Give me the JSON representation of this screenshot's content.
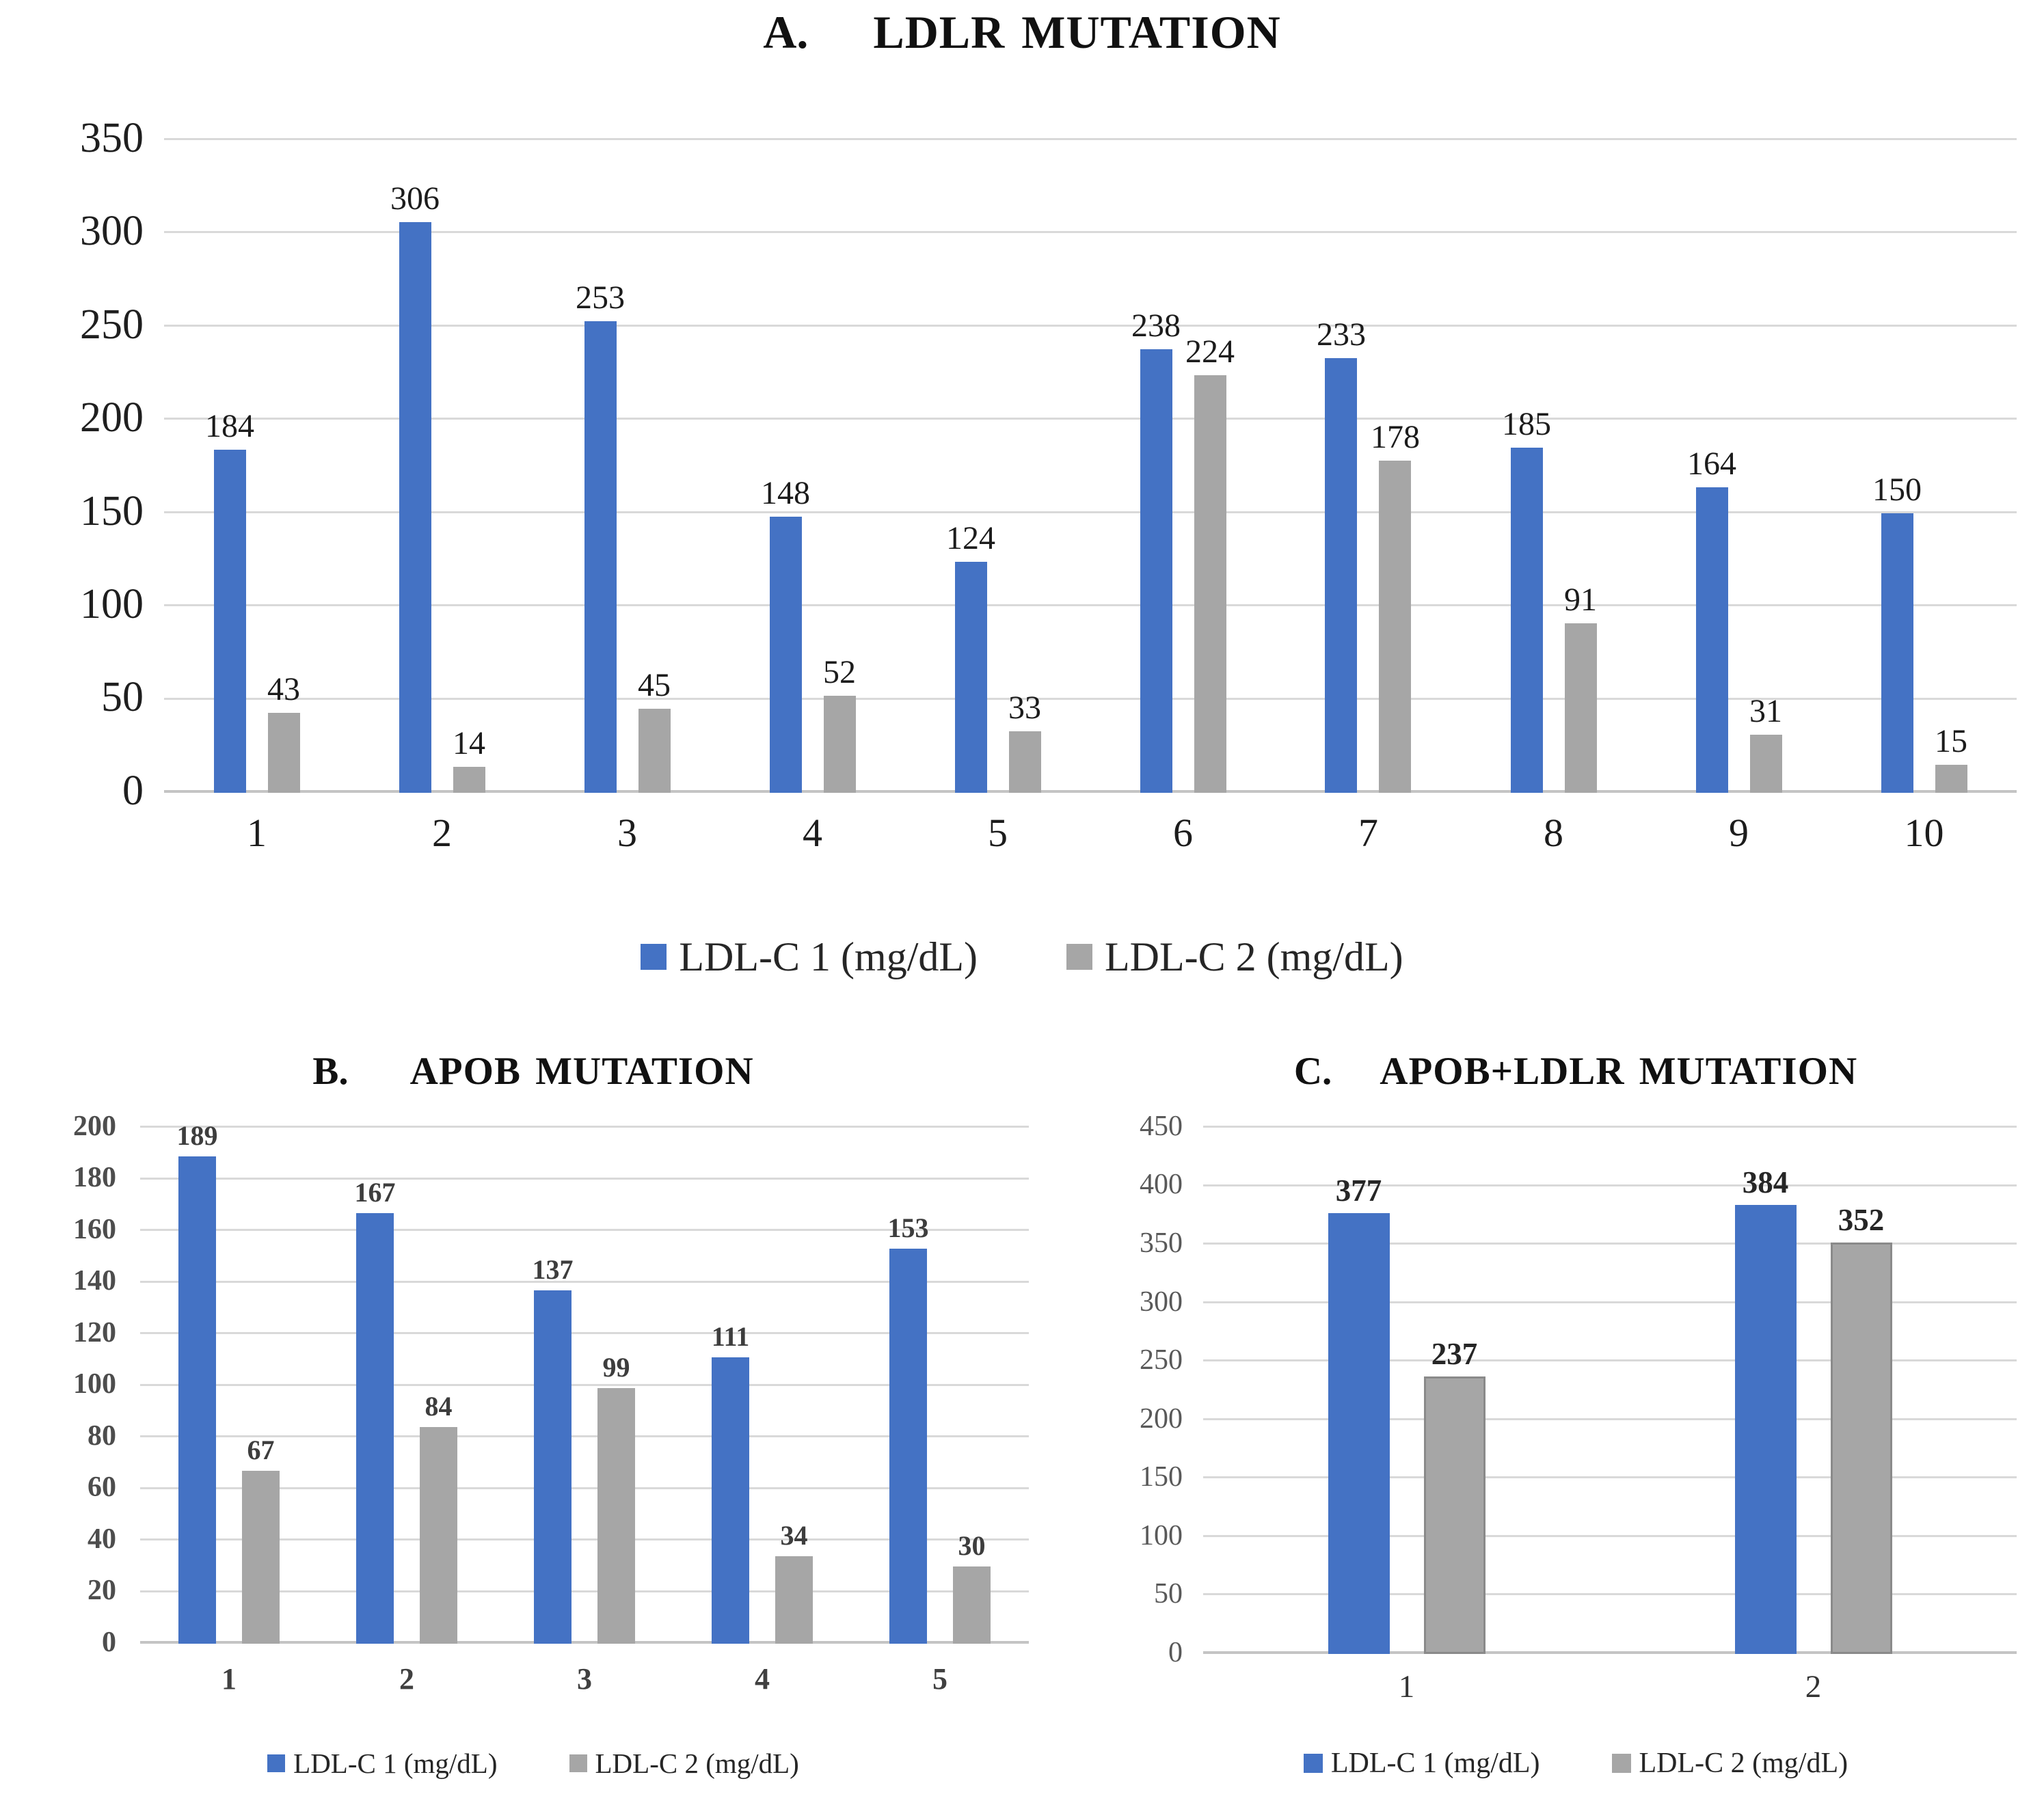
{
  "colors": {
    "series1_blue": "#4472c4",
    "series2_gray": "#a6a6a6",
    "gridline": "#d9d9d9"
  },
  "chart_data": [
    {
      "type": "bar",
      "panel_label": "A.",
      "title": "LDLR MUTATION",
      "categories": [
        "1",
        "2",
        "3",
        "4",
        "5",
        "6",
        "7",
        "8",
        "9",
        "10"
      ],
      "series": [
        {
          "name": "LDL-C 1 (mg/dL)",
          "color": "#4472c4",
          "values": [
            184,
            306,
            253,
            148,
            124,
            238,
            233,
            185,
            164,
            150
          ]
        },
        {
          "name": "LDL-C 2 (mg/dL)",
          "color": "#a6a6a6",
          "values": [
            43,
            14,
            45,
            52,
            33,
            224,
            178,
            91,
            31,
            15
          ]
        }
      ],
      "ylim": [
        0,
        350
      ],
      "ytick_step": 50,
      "grid": true,
      "legend_position": "bottom"
    },
    {
      "type": "bar",
      "panel_label": "B.",
      "title": "APOB MUTATION",
      "categories": [
        "1",
        "2",
        "3",
        "4",
        "5"
      ],
      "series": [
        {
          "name": "LDL-C 1 (mg/dL)",
          "color": "#4472c4",
          "values": [
            189,
            167,
            137,
            111,
            153
          ]
        },
        {
          "name": "LDL-C 2 (mg/dL)",
          "color": "#a6a6a6",
          "values": [
            67,
            84,
            99,
            34,
            30
          ]
        }
      ],
      "ylim": [
        0,
        200
      ],
      "ytick_step": 20,
      "grid": true,
      "legend_position": "bottom"
    },
    {
      "type": "bar",
      "panel_label": "C.",
      "title": "APOB+LDLR MUTATION",
      "categories": [
        "1",
        "2"
      ],
      "series": [
        {
          "name": "LDL-C 1 (mg/dL)",
          "color": "#4472c4",
          "values": [
            377,
            384
          ]
        },
        {
          "name": "LDL-C 2 (mg/dL)",
          "color": "#a6a6a6",
          "values": [
            237,
            352
          ]
        }
      ],
      "ylim": [
        0,
        450
      ],
      "ytick_step": 50,
      "grid": true,
      "legend_position": "bottom"
    }
  ]
}
